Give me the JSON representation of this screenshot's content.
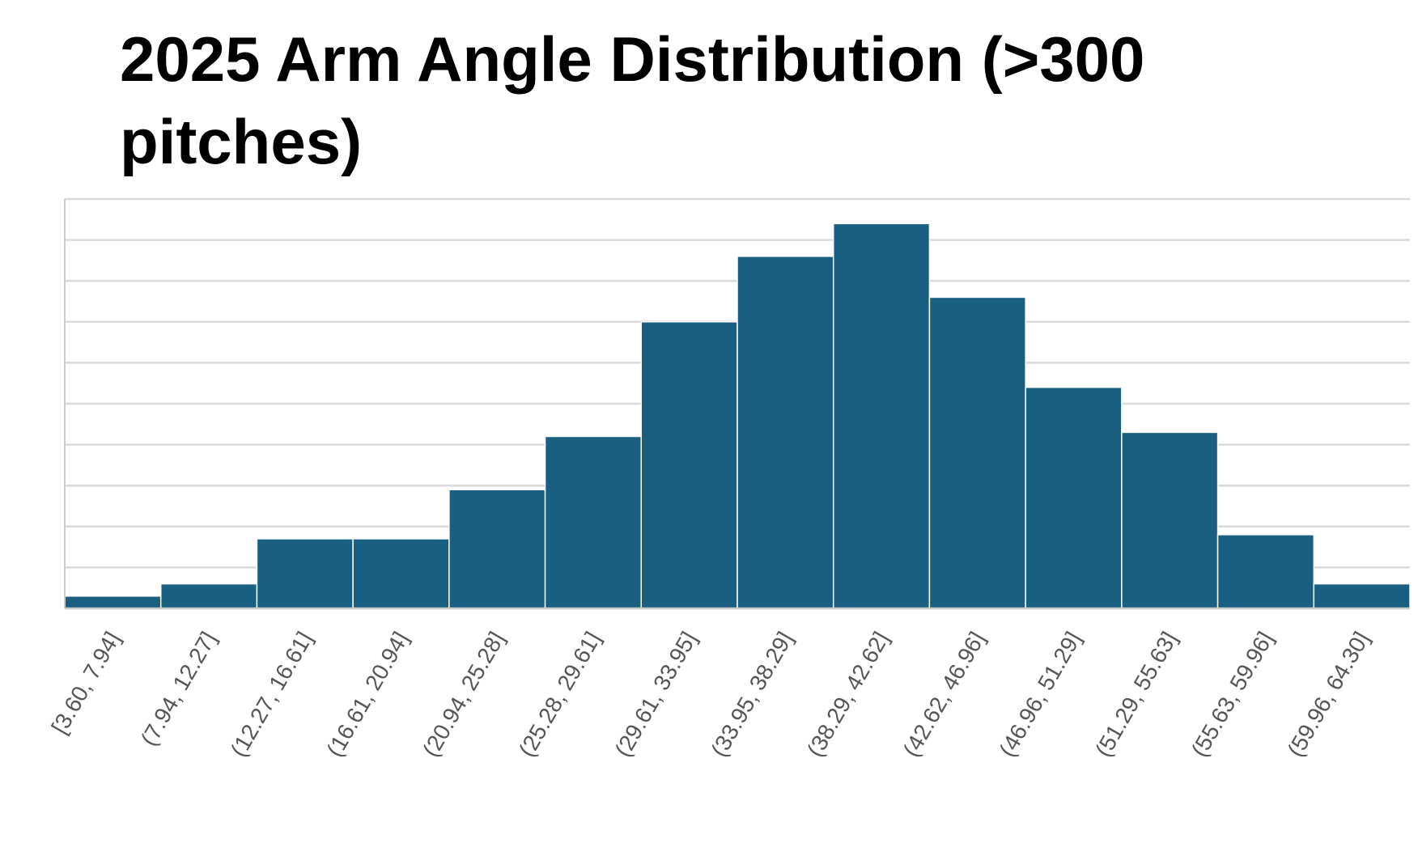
{
  "chart_data": {
    "type": "bar",
    "title": "2025 Arm Angle Distribution  (>300 pitches)",
    "xlabel": "",
    "ylabel": "",
    "categories": [
      "[3.60, 7.94]",
      "(7.94, 12.27]",
      "(12.27, 16.61]",
      "(16.61, 20.94]",
      "(20.94, 25.28]",
      "(25.28, 29.61]",
      "(29.61, 33.95]",
      "(33.95, 38.29]",
      "(38.29, 42.62]",
      "(42.62, 46.96]",
      "(46.96, 51.29]",
      "(51.29, 55.63]",
      "(55.63, 59.96]",
      "(59.96, 64.30]"
    ],
    "values": [
      3,
      6,
      17,
      17,
      29,
      42,
      70,
      86,
      94,
      76,
      54,
      43,
      18,
      6
    ],
    "ylim": [
      0,
      100
    ],
    "grid_step": 10,
    "grid": true,
    "legend": "none",
    "colors": {
      "bar": "#185f82",
      "bar_edge": "#ffffff",
      "grid": "#d9d9d9",
      "axis": "#cccccc",
      "tick_label": "#555555"
    }
  }
}
